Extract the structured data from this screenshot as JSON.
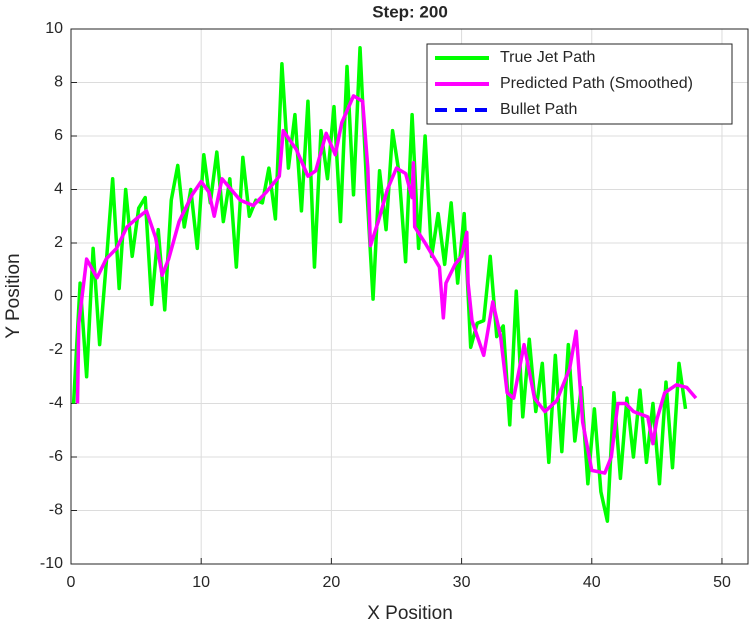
{
  "chart_data": {
    "type": "line",
    "title": "Step: 200",
    "x_label": "X Position",
    "y_label": "Y Position",
    "xlim": [
      0,
      52
    ],
    "ylim": [
      -10,
      10
    ],
    "xticks": [
      0,
      10,
      20,
      30,
      40,
      50
    ],
    "yticks": [
      -10,
      -8,
      -6,
      -4,
      -2,
      0,
      2,
      4,
      6,
      8,
      10
    ],
    "grid": true,
    "legend": "upper right",
    "series": [
      {
        "name": "True Jet Path",
        "color": "#00ff00",
        "dash": "solid",
        "x": [
          0.2,
          0.7,
          1.2,
          1.7,
          2.2,
          2.7,
          3.2,
          3.7,
          4.2,
          4.7,
          5.2,
          5.7,
          6.2,
          6.7,
          7.2,
          7.7,
          8.2,
          8.7,
          9.2,
          9.7,
          10.2,
          10.7,
          11.2,
          11.7,
          12.2,
          12.7,
          13.2,
          13.7,
          14.2,
          14.7,
          15.2,
          15.7,
          16.2,
          16.7,
          17.2,
          17.7,
          18.2,
          18.7,
          19.2,
          19.7,
          20.2,
          20.7,
          21.2,
          21.7,
          22.2,
          22.7,
          23.2,
          23.7,
          24.2,
          24.7,
          25.2,
          25.7,
          26.2,
          26.7,
          27.2,
          27.7,
          28.2,
          28.7,
          29.2,
          29.7,
          30.2,
          30.7,
          31.2,
          31.7,
          32.2,
          32.7,
          33.2,
          33.7,
          34.2,
          34.7,
          35.2,
          35.7,
          36.2,
          36.7,
          37.2,
          37.7,
          38.2,
          38.7,
          39.2,
          39.7,
          40.2,
          40.7,
          41.2,
          41.7,
          42.2,
          42.7,
          43.2,
          43.7,
          44.2,
          44.7,
          45.2,
          45.7,
          46.2,
          46.7,
          47.2
        ],
        "values": [
          -4,
          0.5,
          -3,
          1.8,
          -1.8,
          1.2,
          4.4,
          0.3,
          4,
          1.5,
          3.3,
          3.7,
          -0.3,
          2.5,
          -0.5,
          3.6,
          4.9,
          2.6,
          4,
          1.8,
          5.3,
          3.5,
          5.4,
          2.8,
          4.4,
          1.1,
          5.2,
          3,
          3.6,
          3.5,
          4.8,
          2.9,
          8.7,
          4.8,
          6.8,
          3.2,
          7.3,
          1.1,
          6.2,
          4.4,
          7.1,
          2.8,
          8.6,
          3.8,
          9.3,
          4.2,
          -0.1,
          4.7,
          2.5,
          6.2,
          4.6,
          1.3,
          6.8,
          1.8,
          6,
          1.5,
          3.1,
          1.2,
          3.5,
          0.5,
          3.1,
          -1.9,
          -1,
          -0.9,
          1.5,
          -1.5,
          -1.1,
          -4.8,
          0.2,
          -4.5,
          -1.6,
          -4.3,
          -2.5,
          -6.2,
          -2.2,
          -5.8,
          -1.8,
          -5.4,
          -3.4,
          -7,
          -4.2,
          -7.3,
          -8.4,
          -3.6,
          -6.8,
          -3.8,
          -6,
          -3.5,
          -6.2,
          -4,
          -7,
          -3.2,
          -6.4,
          -2.5,
          -4.2
        ]
      },
      {
        "name": "Predicted Path (Smoothed)",
        "color": "#ff00ff",
        "dash": "solid",
        "x": [
          0.5,
          0.6,
          1.2,
          2,
          2.7,
          3.5,
          4.3,
          5,
          5.8,
          6.5,
          7,
          7.5,
          8.3,
          9.3,
          10,
          10.6,
          11,
          11.6,
          12.3,
          13,
          14,
          15,
          16,
          16.3,
          17.3,
          18.2,
          18.8,
          19.6,
          20.3,
          20.8,
          21.7,
          22.4,
          22.8,
          23,
          23.6,
          24.3,
          25,
          25.7,
          26.2,
          26.3,
          26.4,
          27.2,
          28.3,
          28.6,
          28.8,
          29.5,
          30,
          30.4,
          30.5,
          30.8,
          31.7,
          32.4,
          33,
          33.5,
          34,
          34.8,
          35.6,
          36.4,
          37.3,
          38.3,
          38.8,
          39.3,
          40,
          41,
          41.5,
          42,
          42.6,
          43.2,
          44.3,
          44.7,
          45,
          45.6,
          46.5,
          47.3,
          48
        ],
        "values": [
          -4,
          -1,
          1.4,
          0.7,
          1.4,
          1.8,
          2.6,
          2.9,
          3.2,
          2.2,
          0.8,
          1.4,
          2.8,
          3.8,
          4.3,
          3.9,
          3,
          4.4,
          4,
          3.6,
          3.4,
          3.9,
          4.5,
          6.2,
          5.5,
          4.5,
          4.7,
          6.1,
          5.3,
          6.5,
          7.5,
          7.3,
          4.8,
          1.9,
          2.8,
          4,
          4.8,
          4.6,
          3.7,
          5,
          2.6,
          2,
          1.1,
          -0.8,
          0.5,
          1.2,
          1.5,
          2.4,
          0.5,
          -0.9,
          -2.2,
          -0.2,
          -1.5,
          -3.6,
          -3.8,
          -1.8,
          -3.8,
          -4.3,
          -3.9,
          -2.7,
          -1.3,
          -4.7,
          -6.5,
          -6.6,
          -6,
          -4,
          -4,
          -4.3,
          -4.5,
          -5.5,
          -4.6,
          -3.6,
          -3.3,
          -3.4,
          -3.8
        ]
      },
      {
        "name": "Bullet Path",
        "color": "#0000ff",
        "dash": "dashed",
        "x": [],
        "values": []
      }
    ]
  }
}
